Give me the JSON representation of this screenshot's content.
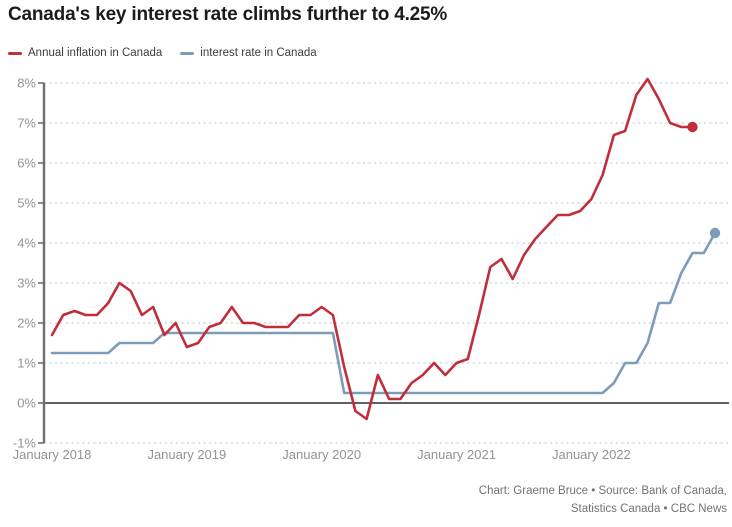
{
  "title": "Canada's key interest rate climbs further to 4.25%",
  "legend": [
    {
      "label": "Annual inflation in Canada",
      "color": "#c22d3a"
    },
    {
      "label": "interest rate in Canada",
      "color": "#7d9cb9"
    }
  ],
  "footer": {
    "line1": "Chart: Graeme Bruce • Source: Bank of Canada,",
    "line2": "Statistics Canada • CBC News"
  },
  "colors": {
    "inflation": "#c22d3a",
    "interest": "#7d9cb9",
    "grid": "#c7cdd4",
    "zero_line": "#5d6065",
    "axis": "#6e7073"
  },
  "chart_data": {
    "type": "line",
    "title": "Canada's key interest rate climbs further to 4.25%",
    "x_start_month": "2018-01",
    "x_end_month": "2022-12",
    "ylim": [
      -1,
      8
    ],
    "grid": "horizontal-dashed",
    "legend_position": "top-left",
    "yticks": [
      {
        "value": 8,
        "label": "8%"
      },
      {
        "value": 7,
        "label": "7%"
      },
      {
        "value": 6,
        "label": "6%"
      },
      {
        "value": 5,
        "label": "5%"
      },
      {
        "value": 4,
        "label": "4%"
      },
      {
        "value": 3,
        "label": "3%"
      },
      {
        "value": 2,
        "label": "2%"
      },
      {
        "value": 1,
        "label": "1%"
      },
      {
        "value": 0,
        "label": "0%"
      },
      {
        "value": -1,
        "label": "-1%"
      }
    ],
    "xticks": [
      {
        "month_index": 0,
        "label": "January 2018"
      },
      {
        "month_index": 12,
        "label": "January 2019"
      },
      {
        "month_index": 24,
        "label": "January 2020"
      },
      {
        "month_index": 36,
        "label": "January 2021"
      },
      {
        "month_index": 48,
        "label": "January 2022"
      }
    ],
    "series": [
      {
        "id": "inflation",
        "name": "Annual inflation in Canada",
        "color": "#c22d3a",
        "end_dot": true,
        "end_value": 6.9,
        "values": [
          1.7,
          2.2,
          2.3,
          2.2,
          2.2,
          2.5,
          3.0,
          2.8,
          2.2,
          2.4,
          1.7,
          2.0,
          1.4,
          1.5,
          1.9,
          2.0,
          2.4,
          2.0,
          2.0,
          1.9,
          1.9,
          1.9,
          2.2,
          2.2,
          2.4,
          2.2,
          0.9,
          -0.2,
          -0.4,
          0.7,
          0.1,
          0.1,
          0.5,
          0.7,
          1.0,
          0.7,
          1.0,
          1.1,
          2.2,
          3.4,
          3.6,
          3.1,
          3.7,
          4.1,
          4.4,
          4.7,
          4.7,
          4.8,
          5.1,
          5.7,
          6.7,
          6.8,
          7.7,
          8.1,
          7.6,
          7.0,
          6.9,
          6.9
        ]
      },
      {
        "id": "interest",
        "name": "interest rate in Canada",
        "color": "#7d9cb9",
        "end_dot": true,
        "end_value": 4.25,
        "values": [
          1.25,
          1.25,
          1.25,
          1.25,
          1.25,
          1.25,
          1.5,
          1.5,
          1.5,
          1.5,
          1.75,
          1.75,
          1.75,
          1.75,
          1.75,
          1.75,
          1.75,
          1.75,
          1.75,
          1.75,
          1.75,
          1.75,
          1.75,
          1.75,
          1.75,
          1.75,
          0.25,
          0.25,
          0.25,
          0.25,
          0.25,
          0.25,
          0.25,
          0.25,
          0.25,
          0.25,
          0.25,
          0.25,
          0.25,
          0.25,
          0.25,
          0.25,
          0.25,
          0.25,
          0.25,
          0.25,
          0.25,
          0.25,
          0.25,
          0.25,
          0.5,
          1.0,
          1.0,
          1.5,
          2.5,
          2.5,
          3.25,
          3.75,
          3.75,
          4.25
        ]
      }
    ]
  }
}
